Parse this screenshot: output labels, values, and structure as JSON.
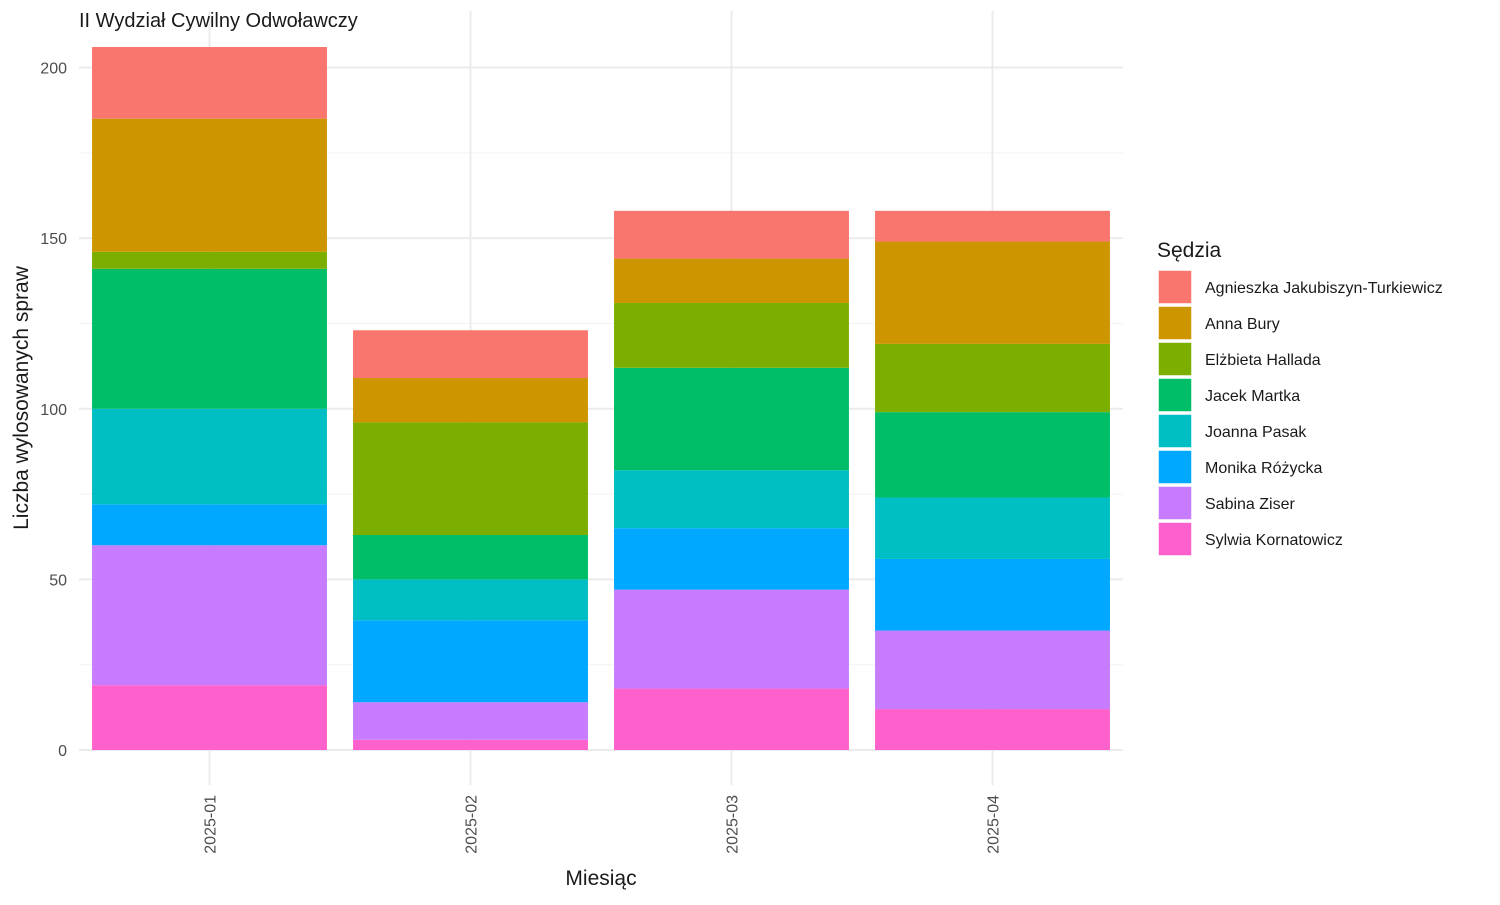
{
  "chart_data": {
    "type": "bar",
    "stacked": true,
    "title": "II Wydział Cywilny Odwoławczy",
    "xlabel": "Miesiąc",
    "ylabel": "Liczba wylosowanych spraw",
    "categories": [
      "2025-01",
      "2025-02",
      "2025-03",
      "2025-04"
    ],
    "ylim": [
      0,
      206
    ],
    "yticks": [
      0,
      50,
      100,
      150,
      200
    ],
    "grid": true,
    "legend": {
      "title": "Sędzia",
      "position": "right"
    },
    "series": [
      {
        "name": "Sylwia Kornatowicz",
        "color": "#FF61CC",
        "values": [
          19,
          3,
          18,
          12
        ]
      },
      {
        "name": "Sabina Ziser",
        "color": "#C77CFF",
        "values": [
          41,
          11,
          29,
          23
        ]
      },
      {
        "name": "Monika Różycka",
        "color": "#00A9FF",
        "values": [
          12,
          24,
          18,
          21
        ]
      },
      {
        "name": "Joanna Pasak",
        "color": "#00BFC4",
        "values": [
          28,
          12,
          17,
          18
        ]
      },
      {
        "name": "Jacek Martka",
        "color": "#00BE67",
        "values": [
          41,
          13,
          30,
          25
        ]
      },
      {
        "name": "Elżbieta Hallada",
        "color": "#7CAE00",
        "values": [
          5,
          33,
          19,
          20
        ]
      },
      {
        "name": "Anna Bury",
        "color": "#CD9600",
        "values": [
          39,
          13,
          13,
          30
        ]
      },
      {
        "name": "Agnieszka Jakubiszyn-Turkiewicz",
        "color": "#F8766D",
        "values": [
          21,
          14,
          14,
          9
        ]
      }
    ]
  }
}
